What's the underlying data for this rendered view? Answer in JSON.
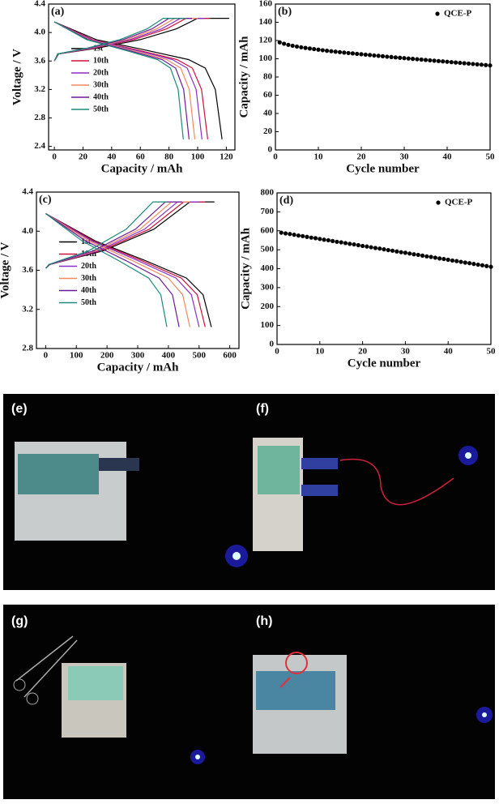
{
  "chart_data": [
    {
      "type": "line",
      "title": "(a)",
      "x_label": "Capacity / mAh",
      "y_label": "Voltage / V",
      "xlim": [
        -4,
        126
      ],
      "xticks": [
        0,
        20,
        40,
        60,
        80,
        100,
        120
      ],
      "ylim": [
        2.35,
        4.4
      ],
      "yticks": [
        2.4,
        2.8,
        3.2,
        3.6,
        {
          "value": 4,
          "label": "4.0"
        },
        4.4
      ],
      "legend": "center left",
      "series": [
        {
          "name": "1st",
          "color": "#000000",
          "x": [
            0,
            3,
            30,
            60,
            85,
            100,
            122,
            null,
            0,
            29.3,
            64.4,
            93.6,
            105.3,
            112.3,
            117
          ],
          "values": [
            3.6,
            3.7,
            3.78,
            3.9,
            4.05,
            4.2,
            4.2,
            null,
            4.15,
            3.9,
            3.75,
            3.62,
            3.5,
            3.2,
            2.5
          ]
        },
        {
          "name": "10th",
          "color": "#d0103a",
          "x": [
            0,
            2.8,
            27.6,
            55.2,
            78.2,
            92,
            108,
            null,
            0,
            26.8,
            58.9,
            85.6,
            96.3,
            102.7,
            107
          ],
          "values": [
            3.6,
            3.7,
            3.78,
            3.9,
            4.05,
            4.2,
            4.2,
            null,
            4.15,
            3.9,
            3.75,
            3.62,
            3.5,
            3.2,
            2.5
          ]
        },
        {
          "name": "20th",
          "color": "#8b2fc9",
          "x": [
            0,
            2.6,
            26.4,
            52.8,
            74.8,
            88,
            105,
            null,
            0,
            25.8,
            56.7,
            82.4,
            92.7,
            98.9,
            103
          ],
          "values": [
            3.6,
            3.7,
            3.78,
            3.9,
            4.05,
            4.2,
            4.2,
            null,
            4.15,
            3.9,
            3.75,
            3.62,
            3.5,
            3.2,
            2.5
          ]
        },
        {
          "name": "30th",
          "color": "#f08a5d",
          "x": [
            0,
            2.5,
            25.2,
            50.4,
            71.4,
            84,
            100,
            null,
            0,
            24.5,
            53.9,
            78.4,
            88.2,
            94.1,
            98
          ],
          "values": [
            3.6,
            3.7,
            3.78,
            3.9,
            4.05,
            4.2,
            4.2,
            null,
            4.15,
            3.9,
            3.75,
            3.62,
            3.5,
            3.2,
            2.5
          ]
        },
        {
          "name": "40th",
          "color": "#6a1b9a",
          "x": [
            0,
            2.4,
            24,
            48,
            68,
            80,
            96,
            null,
            0,
            23.5,
            51.7,
            75.2,
            84.6,
            90.2,
            94
          ],
          "values": [
            3.6,
            3.7,
            3.78,
            3.9,
            4.05,
            4.2,
            4.2,
            null,
            4.15,
            3.9,
            3.75,
            3.62,
            3.5,
            3.2,
            2.5
          ]
        },
        {
          "name": "50th",
          "color": "#1a8a7a",
          "x": [
            0,
            2.3,
            22.8,
            45.6,
            64.6,
            76,
            92,
            null,
            0,
            22.5,
            49.5,
            72,
            81,
            86.4,
            90
          ],
          "values": [
            3.6,
            3.7,
            3.78,
            3.9,
            4.05,
            4.2,
            4.2,
            null,
            4.15,
            3.9,
            3.75,
            3.62,
            3.5,
            3.2,
            2.5
          ]
        }
      ]
    },
    {
      "type": "scatter",
      "title": "(b)",
      "x_label": "Cycle number",
      "y_label": "Capacity / mAh",
      "xlim": [
        0,
        50
      ],
      "xticks": [
        0,
        10,
        20,
        30,
        40,
        50
      ],
      "ylim": [
        0,
        160
      ],
      "yticks": [
        0,
        20,
        40,
        60,
        80,
        100,
        120,
        140,
        160
      ],
      "legend": "upper right",
      "x": [
        1,
        2,
        3,
        4,
        5,
        6,
        7,
        8,
        9,
        10,
        11,
        12,
        13,
        14,
        15,
        16,
        17,
        18,
        19,
        20,
        21,
        22,
        23,
        24,
        25,
        26,
        27,
        28,
        29,
        30,
        31,
        32,
        33,
        34,
        35,
        36,
        37,
        38,
        39,
        40,
        41,
        42,
        43,
        44,
        45,
        46,
        47,
        48,
        49,
        50
      ],
      "series": [
        {
          "name": "QCE-P",
          "color": "#000000",
          "values": [
            118,
            116.5,
            115.3,
            114.3,
            113.4,
            112.6,
            111.9,
            111.2,
            110.6,
            110.0,
            109.4,
            108.8,
            108.3,
            107.8,
            107.3,
            106.8,
            106.3,
            105.9,
            105.4,
            105.0,
            104.5,
            104.1,
            103.6,
            103.2,
            102.8,
            102.3,
            101.9,
            101.5,
            101.1,
            100.7,
            100.3,
            99.9,
            99.5,
            99.1,
            98.7,
            98.3,
            97.9,
            97.5,
            97.1,
            96.7,
            96.3,
            95.9,
            95.5,
            95.1,
            94.7,
            94.3,
            93.9,
            93.5,
            93.1,
            92.7
          ]
        }
      ]
    },
    {
      "type": "line",
      "title": "(c)",
      "x_label": "Capacity / mAh",
      "y_label": "Voltage / V",
      "xlim": [
        -30,
        630
      ],
      "xticks": [
        0,
        100,
        200,
        300,
        400,
        500,
        600
      ],
      "ylim": [
        2.8,
        4.4
      ],
      "yticks": [
        2.8,
        3.2,
        3.6,
        {
          "value": 4,
          "label": "4.0"
        },
        4.4
      ],
      "legend": "center left",
      "series": [
        {
          "name": "1st",
          "color": "#000000",
          "x": [
            0,
            14.1,
            188,
            352.5,
            470,
            550,
            null,
            0,
            162,
            324,
            459,
            513,
            540
          ],
          "values": [
            3.62,
            3.66,
            3.8,
            4.02,
            4.3,
            4.3,
            null,
            4.18,
            3.9,
            3.7,
            3.52,
            3.35,
            3.02
          ]
        },
        {
          "name": "10th",
          "color": "#d0103a",
          "x": [
            0,
            13.5,
            180,
            337.5,
            450,
            520,
            null,
            0,
            156,
            312,
            442,
            494,
            520
          ],
          "values": [
            3.62,
            3.66,
            3.8,
            4.02,
            4.3,
            4.3,
            null,
            4.18,
            3.9,
            3.7,
            3.52,
            3.35,
            3.02
          ]
        },
        {
          "name": "20th",
          "color": "#8b2fc9",
          "x": [
            0,
            12.9,
            172,
            322.5,
            430,
            500,
            null,
            0,
            150,
            300,
            425,
            475,
            500
          ],
          "values": [
            3.62,
            3.66,
            3.8,
            4.02,
            4.3,
            4.3,
            null,
            4.18,
            3.9,
            3.7,
            3.52,
            3.35,
            3.02
          ]
        },
        {
          "name": "30th",
          "color": "#f08a5d",
          "x": [
            0,
            12.3,
            164,
            307.5,
            410,
            470,
            null,
            0,
            141,
            282,
            399.5,
            446.5,
            470
          ],
          "values": [
            3.62,
            3.66,
            3.8,
            4.02,
            4.3,
            4.3,
            null,
            4.18,
            3.9,
            3.7,
            3.52,
            3.35,
            3.02
          ]
        },
        {
          "name": "40th",
          "color": "#6a1b9a",
          "x": [
            0,
            11.7,
            156,
            292.5,
            390,
            445,
            null,
            0,
            130.5,
            261,
            369.8,
            413.3,
            435
          ],
          "values": [
            3.62,
            3.66,
            3.8,
            4.02,
            4.3,
            4.3,
            null,
            4.18,
            3.9,
            3.7,
            3.52,
            3.35,
            3.02
          ]
        },
        {
          "name": "50th",
          "color": "#1a8a7a",
          "x": [
            0,
            10.5,
            140,
            262.5,
            350,
            395,
            null,
            0,
            118.5,
            237,
            335.8,
            375.3,
            395
          ],
          "values": [
            3.62,
            3.66,
            3.8,
            4.02,
            4.3,
            4.3,
            null,
            4.18,
            3.9,
            3.7,
            3.52,
            3.35,
            3.02
          ]
        }
      ]
    },
    {
      "type": "scatter",
      "title": "(d)",
      "x_label": "Cycle number",
      "y_label": "Capacity / mAh",
      "xlim": [
        0,
        50
      ],
      "xticks": [
        0,
        10,
        20,
        30,
        40,
        50
      ],
      "ylim": [
        0,
        800
      ],
      "yticks": [
        0,
        100,
        200,
        300,
        400,
        500,
        600,
        700,
        800
      ],
      "legend": "upper right",
      "x": [
        1,
        2,
        3,
        4,
        5,
        6,
        7,
        8,
        9,
        10,
        11,
        12,
        13,
        14,
        15,
        16,
        17,
        18,
        19,
        20,
        21,
        22,
        23,
        24,
        25,
        26,
        27,
        28,
        29,
        30,
        31,
        32,
        33,
        34,
        35,
        36,
        37,
        38,
        39,
        40,
        41,
        42,
        43,
        44,
        45,
        46,
        47,
        48,
        49,
        50
      ],
      "series": [
        {
          "name": "QCE-P",
          "color": "#000000",
          "values": [
            590,
            586,
            583,
            579,
            575,
            572,
            568,
            564,
            561,
            557,
            553,
            550,
            546,
            542,
            539,
            535,
            531,
            528,
            524,
            520,
            517,
            513,
            509,
            506,
            502,
            498,
            495,
            491,
            487,
            484,
            480,
            476,
            473,
            469,
            465,
            462,
            458,
            454,
            451,
            447,
            443,
            440,
            436,
            432,
            429,
            425,
            421,
            418,
            414,
            410
          ]
        }
      ]
    }
  ],
  "photos": [
    {
      "label": "(e)"
    },
    {
      "label": "(f)"
    },
    {
      "label": "(g)"
    },
    {
      "label": "(h)"
    }
  ]
}
